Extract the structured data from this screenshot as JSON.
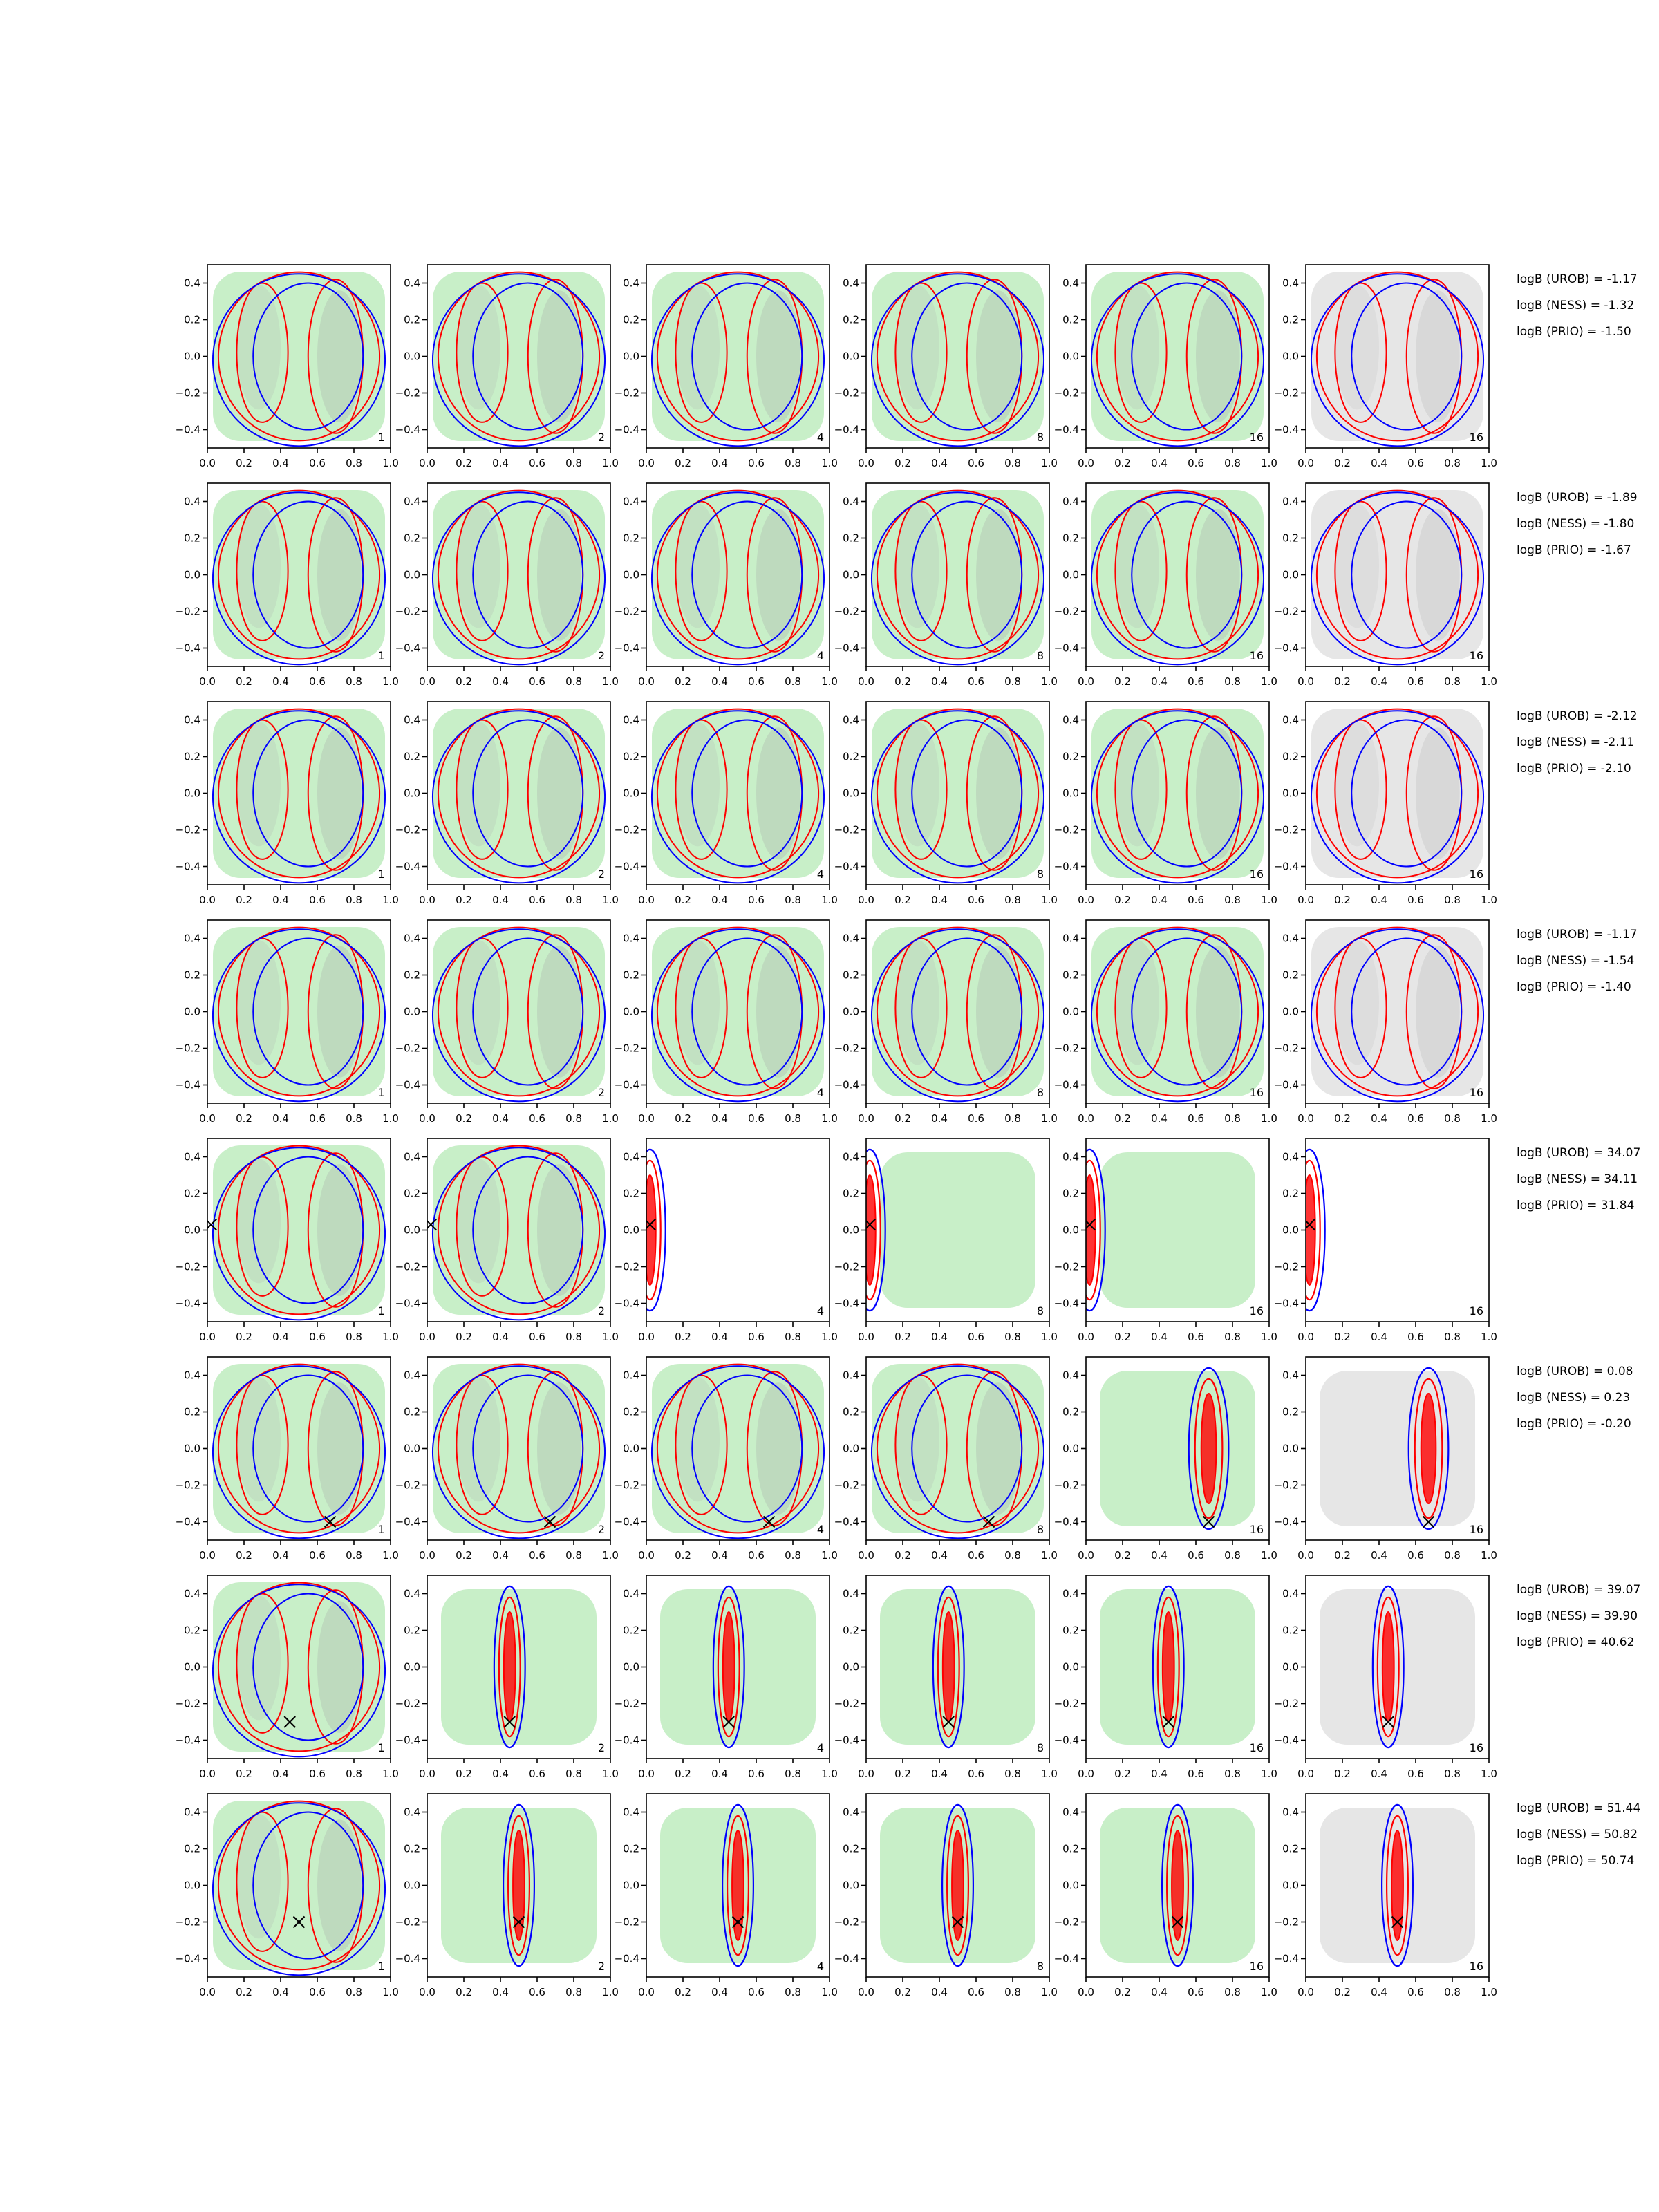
{
  "colors": {
    "ness_contour": "#0000ff",
    "prio_contour": "#ff0000",
    "urob_fill_light": "#c8efc8",
    "urob_fill_dark": "#b8ccb8",
    "final_fill_light": "#e6e6e6",
    "final_fill_dark": "#cfcfcf",
    "true_point": "#000000",
    "axes": "#000000"
  },
  "chart_data": {
    "type": "contour-grid",
    "rows": 8,
    "cols": 6,
    "xlim": [
      0.0,
      1.0
    ],
    "ylim": [
      -0.5,
      0.5
    ],
    "x_ticks": [
      "0.0",
      "0.2",
      "0.4",
      "0.6",
      "0.8",
      "1.0"
    ],
    "y_ticks": [
      "0.4",
      "0.2",
      "0.0",
      "−0.2",
      "−0.4"
    ],
    "x_tick_values": [
      0.0,
      0.2,
      0.4,
      0.6,
      0.8,
      1.0
    ],
    "y_tick_values": [
      0.4,
      0.2,
      0.0,
      -0.2,
      -0.4
    ],
    "column_labels": [
      "1",
      "2",
      "4",
      "8",
      "16",
      "16"
    ],
    "grid": false,
    "true_points": [
      null,
      null,
      null,
      null,
      [
        0.02,
        0.03
      ],
      [
        0.67,
        -0.4
      ],
      [
        0.45,
        -0.3
      ],
      [
        0.5,
        -0.2
      ]
    ],
    "rows_data": [
      {
        "logB": [
          "logB (UROB) = -1.17",
          "logB (NESS) = -1.32",
          "logB (PRIO) = -1.50"
        ]
      },
      {
        "logB": [
          "logB (UROB) = -1.89",
          "logB (NESS) = -1.80",
          "logB (PRIO) = -1.67"
        ]
      },
      {
        "logB": [
          "logB (UROB) = -2.12",
          "logB (NESS) = -2.11",
          "logB (PRIO) = -2.10"
        ]
      },
      {
        "logB": [
          "logB (UROB) = -1.17",
          "logB (NESS) = -1.54",
          "logB (PRIO) = -1.40"
        ]
      },
      {
        "logB": [
          "logB (UROB) = 34.07",
          "logB (NESS) = 34.11",
          "logB (PRIO) = 31.84"
        ]
      },
      {
        "logB": [
          "logB (UROB) = 0.08",
          "logB (NESS) = 0.23",
          "logB (PRIO) = -0.20"
        ]
      },
      {
        "logB": [
          "logB (UROB) = 39.07",
          "logB (NESS) = 39.90",
          "logB (PRIO) = 40.62"
        ]
      },
      {
        "logB": [
          "logB (UROB) = 51.44",
          "logB (NESS) = 50.82",
          "logB (PRIO) = 50.74"
        ]
      }
    ]
  }
}
